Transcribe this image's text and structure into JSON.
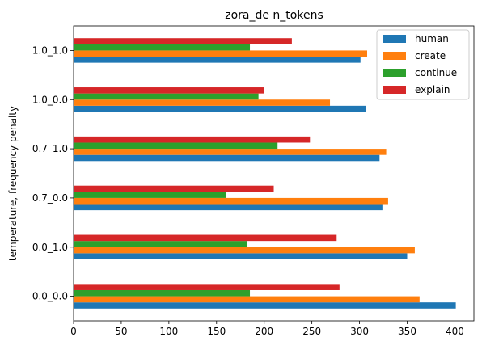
{
  "chart_data": {
    "type": "bar",
    "orientation": "horizontal",
    "title": "zora_de n_tokens",
    "xlabel": "",
    "ylabel": "temperature, frequency penalty",
    "categories": [
      "0.0_0.0",
      "0.0_1.0",
      "0.7_0.0",
      "0.7_1.0",
      "1.0_0.0",
      "1.0_1.0"
    ],
    "xlim": [
      0,
      420
    ],
    "xticks": [
      0,
      50,
      100,
      150,
      200,
      250,
      300,
      350,
      400
    ],
    "grid": false,
    "legend_position": "top-right",
    "series": [
      {
        "name": "human",
        "color": "#1f77b4",
        "values": [
          401,
          350,
          324,
          321,
          307,
          301
        ]
      },
      {
        "name": "create",
        "color": "#ff7f0e",
        "values": [
          363,
          358,
          330,
          328,
          269,
          308
        ]
      },
      {
        "name": "continue",
        "color": "#2ca02c",
        "values": [
          185,
          182,
          160,
          214,
          194,
          185
        ]
      },
      {
        "name": "explain",
        "color": "#d62728",
        "values": [
          279,
          276,
          210,
          248,
          200,
          229
        ]
      }
    ]
  }
}
